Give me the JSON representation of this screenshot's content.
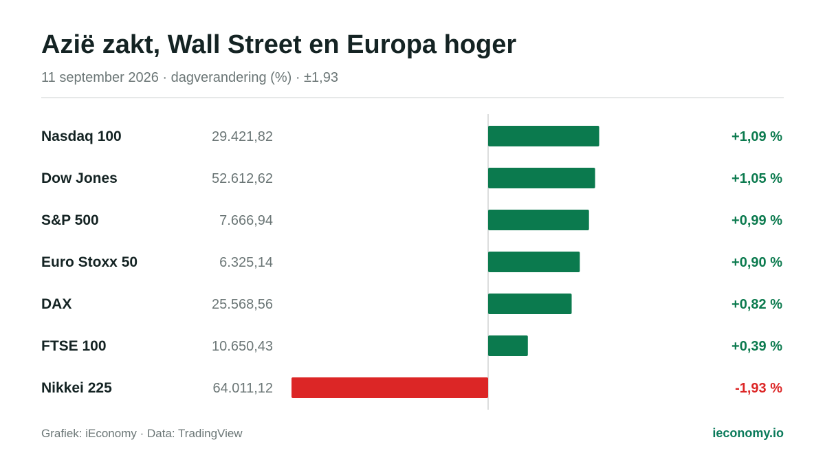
{
  "header": {
    "title": "Azië zakt, Wall Street en Europa hoger",
    "subtitle": "11 september 2026 · dagverandering (%) · ±1,93"
  },
  "footer": {
    "source": "Grafiek: iEconomy · Data: TradingView",
    "brand": "ieconomy.io"
  },
  "colors": {
    "positive": "#0b7a4e",
    "negative": "#dc2626",
    "positive_text": "#0b7a4e",
    "negative_text": "#dc2626",
    "name_text": "#142323",
    "value_text": "#6b7676",
    "zero_line": "#dcdede"
  },
  "chart_data": {
    "type": "bar",
    "orientation": "horizontal",
    "xlim": [
      -1.93,
      1.93
    ],
    "categories": [
      "Nasdaq 100",
      "Dow Jones",
      "S&P 500",
      "Euro Stoxx 50",
      "DAX",
      "FTSE 100",
      "Nikkei 225"
    ],
    "index_levels": [
      "29.421,82",
      "52.612,62",
      "7.666,94",
      "6.325,14",
      "25.568,56",
      "10.650,43",
      "64.011,12"
    ],
    "values": [
      1.09,
      1.05,
      0.99,
      0.9,
      0.82,
      0.39,
      -1.93
    ],
    "value_labels": [
      "+1,09 %",
      "+1,05 %",
      "+0,99 %",
      "+0,90 %",
      "+0,82 %",
      "+0,39 %",
      "-1,93 %"
    ]
  }
}
